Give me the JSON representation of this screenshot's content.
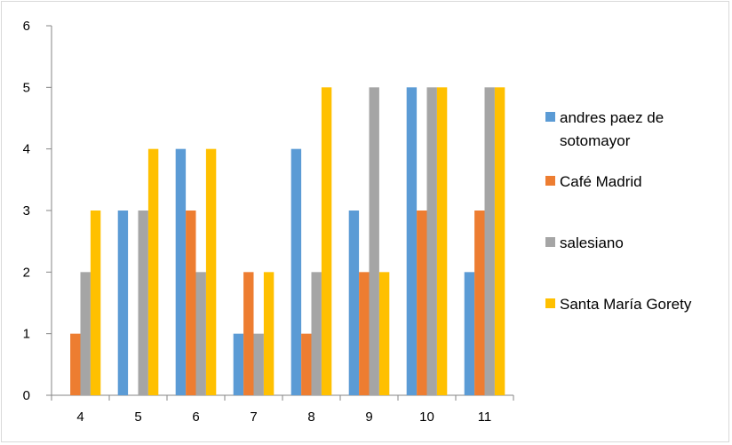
{
  "chart_data": {
    "type": "bar",
    "categories": [
      "4",
      "5",
      "6",
      "7",
      "8",
      "9",
      "10",
      "11"
    ],
    "series": [
      {
        "name": "andres paez de sotomayor",
        "legend_lines": [
          "andres paez de",
          "sotomayor"
        ],
        "color": "#5b9bd5",
        "values": [
          0,
          3,
          4,
          1,
          4,
          3,
          5,
          2
        ]
      },
      {
        "name": "Café Madrid",
        "legend_lines": [
          "Café Madrid"
        ],
        "color": "#ed7d31",
        "values": [
          1,
          0,
          3,
          2,
          1,
          2,
          3,
          3
        ]
      },
      {
        "name": "salesiano",
        "legend_lines": [
          "salesiano"
        ],
        "color": "#a5a5a5",
        "values": [
          2,
          3,
          2,
          1,
          2,
          5,
          5,
          5
        ]
      },
      {
        "name": "Santa María Gorety",
        "legend_lines": [
          "Santa María Gorety"
        ],
        "color": "#ffc000",
        "values": [
          3,
          4,
          4,
          2,
          5,
          2,
          5,
          5
        ]
      }
    ],
    "title": "",
    "xlabel": "",
    "ylabel": "",
    "ylim": [
      0,
      6
    ],
    "yticks": [
      "0",
      "1",
      "2",
      "3",
      "4",
      "5",
      "6"
    ],
    "grid": false,
    "legend_position": "right"
  }
}
